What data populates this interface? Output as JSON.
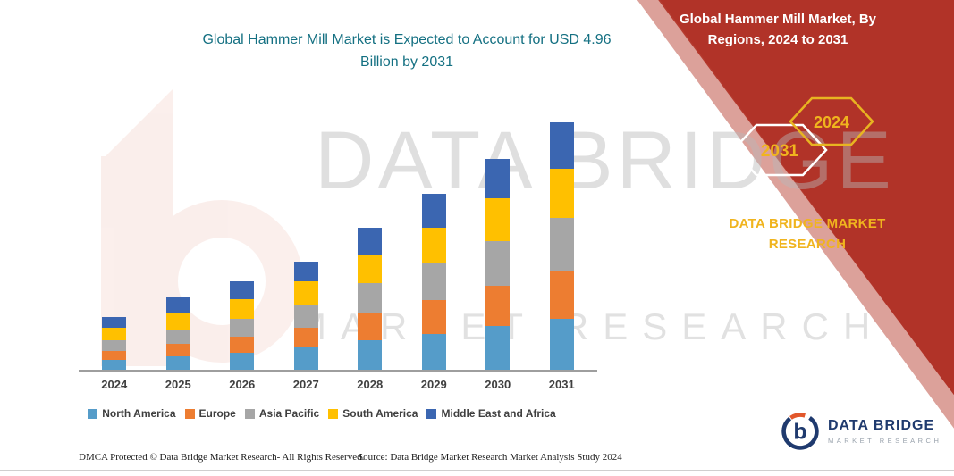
{
  "banner": {
    "heading": "Global Hammer Mill Market, By Regions, 2024 to 2031",
    "hexagon_left": "2031",
    "hexagon_right": "2024",
    "brand": "DATA BRIDGE MARKET RESEARCH",
    "color": "#b13328",
    "accent_gold": "#f0b41e"
  },
  "watermark": {
    "line1": "DATA BRIDGE",
    "line2": "MARKET RESEARCH"
  },
  "chart_data": {
    "type": "bar",
    "stacked": true,
    "title": "Global Hammer Mill Market is Expected to Account for USD 4.96 Billion by 2031",
    "categories": [
      "2024",
      "2025",
      "2026",
      "2027",
      "2028",
      "2029",
      "2030",
      "2031"
    ],
    "series": [
      {
        "name": "North America",
        "color": "#559cc9",
        "values": [
          0.21,
          0.28,
          0.35,
          0.46,
          0.6,
          0.74,
          0.89,
          1.03
        ]
      },
      {
        "name": "Europe",
        "color": "#ed7d31",
        "values": [
          0.18,
          0.25,
          0.32,
          0.39,
          0.53,
          0.67,
          0.81,
          0.96
        ]
      },
      {
        "name": "Asia Pacific",
        "color": "#a6a6a6",
        "values": [
          0.21,
          0.28,
          0.35,
          0.46,
          0.6,
          0.74,
          0.89,
          1.06
        ]
      },
      {
        "name": "South America",
        "color": "#ffc000",
        "values": [
          0.25,
          0.32,
          0.39,
          0.46,
          0.57,
          0.71,
          0.85,
          0.99
        ]
      },
      {
        "name": "Middle East and Africa",
        "color": "#3b66b1",
        "values": [
          0.21,
          0.32,
          0.35,
          0.39,
          0.53,
          0.67,
          0.78,
          0.92
        ]
      }
    ],
    "units": "USD Billion",
    "xlabel": "",
    "ylabel": "",
    "ylim": [
      0,
      5
    ],
    "grid": false,
    "legend_position": "bottom"
  },
  "footer": {
    "dmca": "DMCA Protected © Data Bridge Market Research-  All Rights Reserved.",
    "source": "Source: Data Bridge Market Research  Market Analysis Study 2024"
  },
  "logo": {
    "name": "DATA BRIDGE",
    "subtitle": "MARKET RESEARCH"
  }
}
